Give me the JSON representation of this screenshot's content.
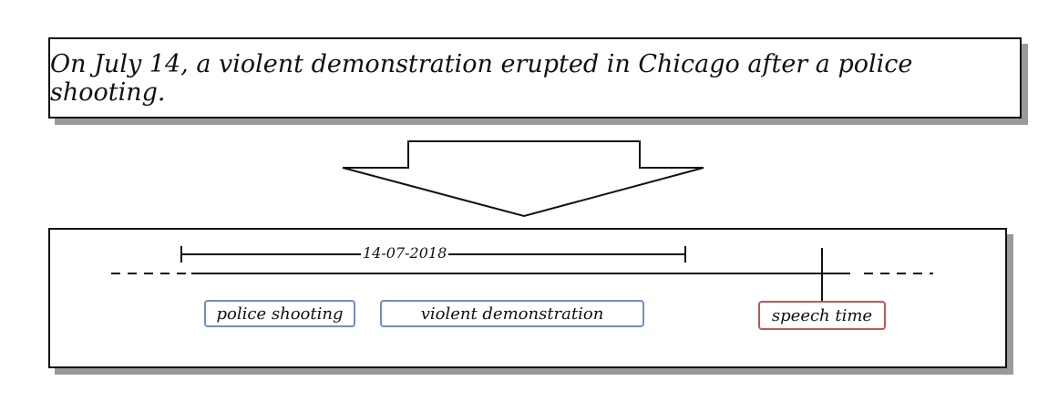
{
  "sentence": "On July 14, a violent demonstration erupted in Chicago after a police shooting.",
  "timeline": {
    "date_label": "14-07-2018",
    "events": [
      {
        "label": "police shooting",
        "color": "#6f8fc3"
      },
      {
        "label": "violent demonstration",
        "color": "#6f8fc3"
      }
    ],
    "speech_time": {
      "label": "speech time",
      "color": "#b85a55"
    }
  },
  "colors": {
    "shadow": "#9a9a9a",
    "line": "#111111"
  }
}
